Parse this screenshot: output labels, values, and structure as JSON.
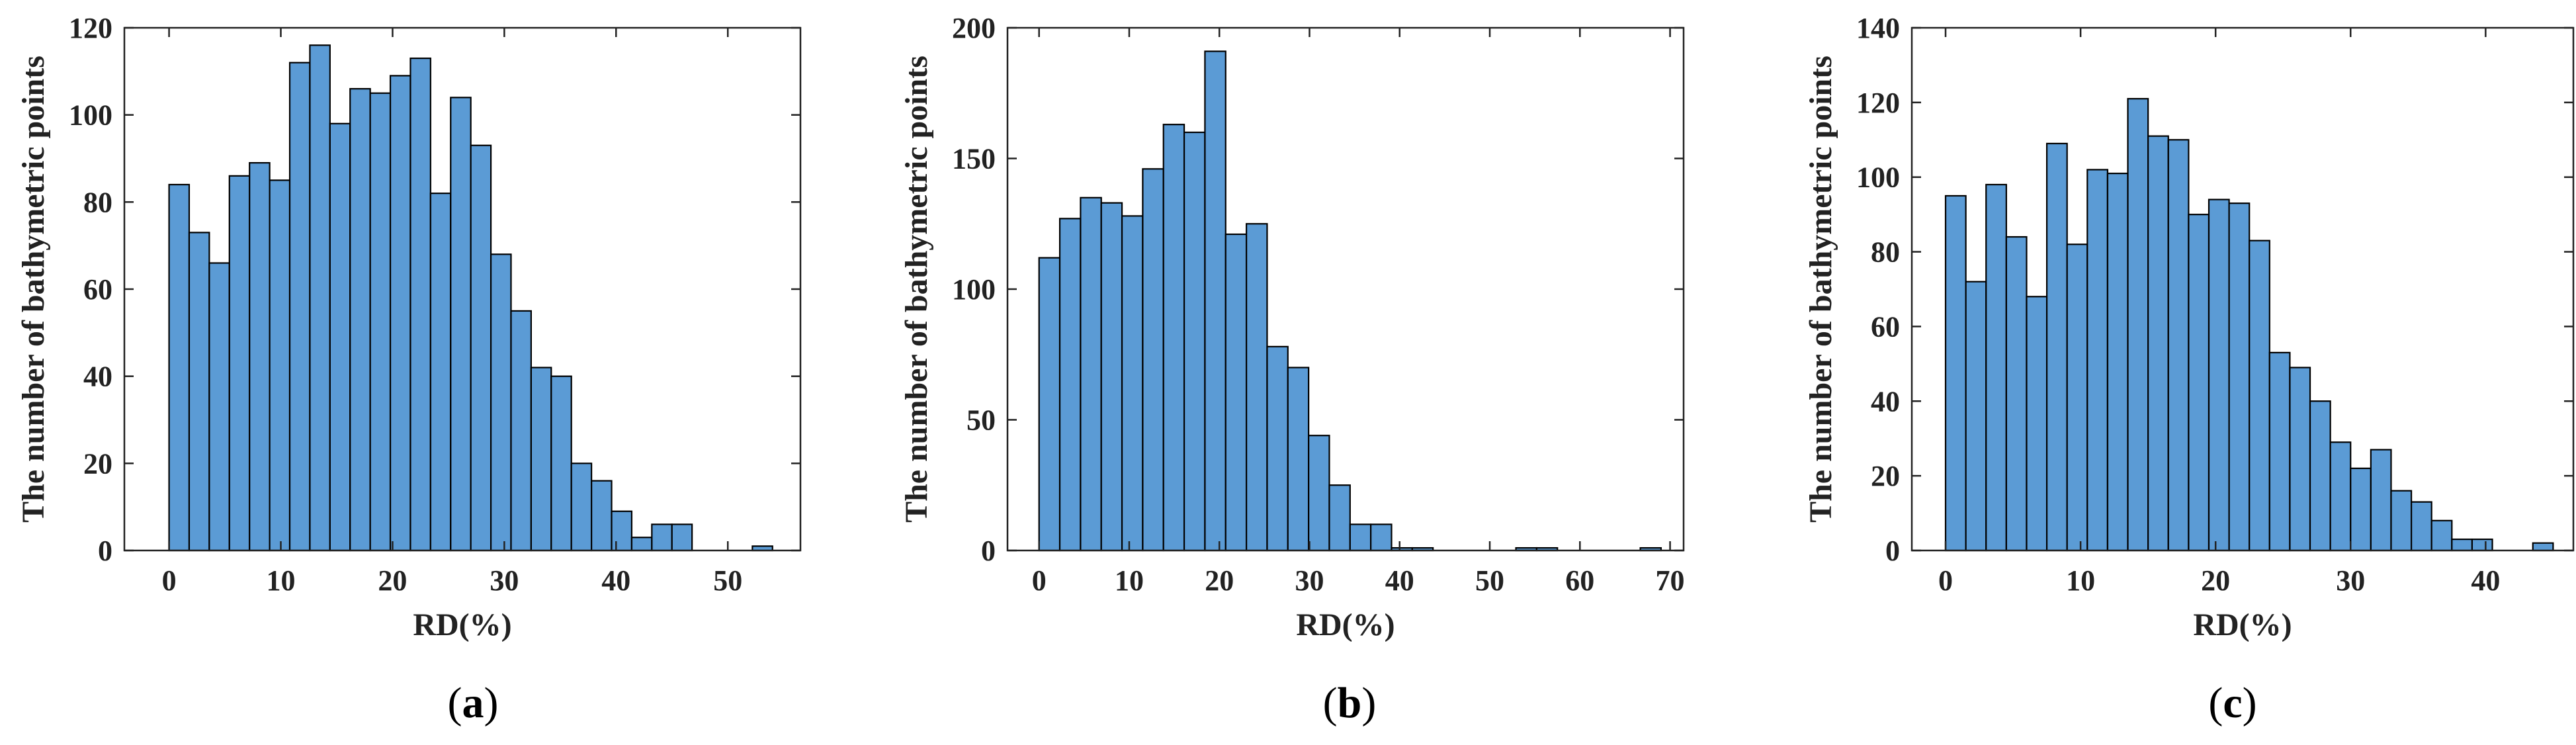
{
  "chart_data": [
    {
      "type": "bar",
      "panel_label": "a",
      "xlabel": "RD(%)",
      "ylabel": "The number of bathymetric points",
      "xlim": [
        -4,
        56.5
      ],
      "ylim": [
        0,
        120
      ],
      "xticks": [
        0,
        10,
        20,
        30,
        40,
        50
      ],
      "yticks": [
        0,
        20,
        40,
        60,
        80,
        100,
        120
      ],
      "bin_width": 1.8,
      "bin_start": 0,
      "values": [
        84,
        73,
        66,
        86,
        89,
        85,
        112,
        116,
        98,
        106,
        105,
        109,
        113,
        82,
        104,
        93,
        68,
        55,
        42,
        40,
        20,
        16,
        9,
        3,
        6,
        6,
        0,
        0,
        0,
        1
      ],
      "grid": false,
      "bar_color": "#5b9bd5"
    },
    {
      "type": "bar",
      "panel_label": "b",
      "xlabel": "RD(%)",
      "ylabel": "The number of bathymetric points",
      "xlim": [
        -3.5,
        71.5
      ],
      "ylim": [
        0,
        200
      ],
      "xticks": [
        0,
        10,
        20,
        30,
        40,
        50,
        60,
        70
      ],
      "yticks": [
        0,
        50,
        100,
        150,
        200
      ],
      "bin_width": 2.3,
      "bin_start": 0,
      "values": [
        112,
        127,
        135,
        133,
        128,
        146,
        163,
        160,
        191,
        121,
        125,
        78,
        70,
        44,
        25,
        10,
        10,
        1,
        1,
        0,
        0,
        0,
        0,
        1,
        1,
        0,
        0,
        0,
        0,
        1
      ],
      "grid": false,
      "bar_color": "#5b9bd5"
    },
    {
      "type": "bar",
      "panel_label": "c",
      "xlabel": "RD(%)",
      "ylabel": "The number of bathymetric points",
      "xlim": [
        -2.5,
        46.5
      ],
      "ylim": [
        0,
        140
      ],
      "xticks": [
        0,
        10,
        20,
        30,
        40
      ],
      "yticks": [
        0,
        20,
        40,
        60,
        80,
        100,
        120,
        140
      ],
      "bin_width": 1.5,
      "bin_start": 0,
      "values": [
        95,
        72,
        98,
        84,
        68,
        109,
        82,
        102,
        101,
        121,
        111,
        110,
        90,
        94,
        93,
        83,
        53,
        49,
        40,
        29,
        22,
        27,
        16,
        13,
        8,
        3,
        3,
        0,
        0,
        2
      ],
      "grid": false,
      "bar_color": "#5b9bd5"
    }
  ]
}
